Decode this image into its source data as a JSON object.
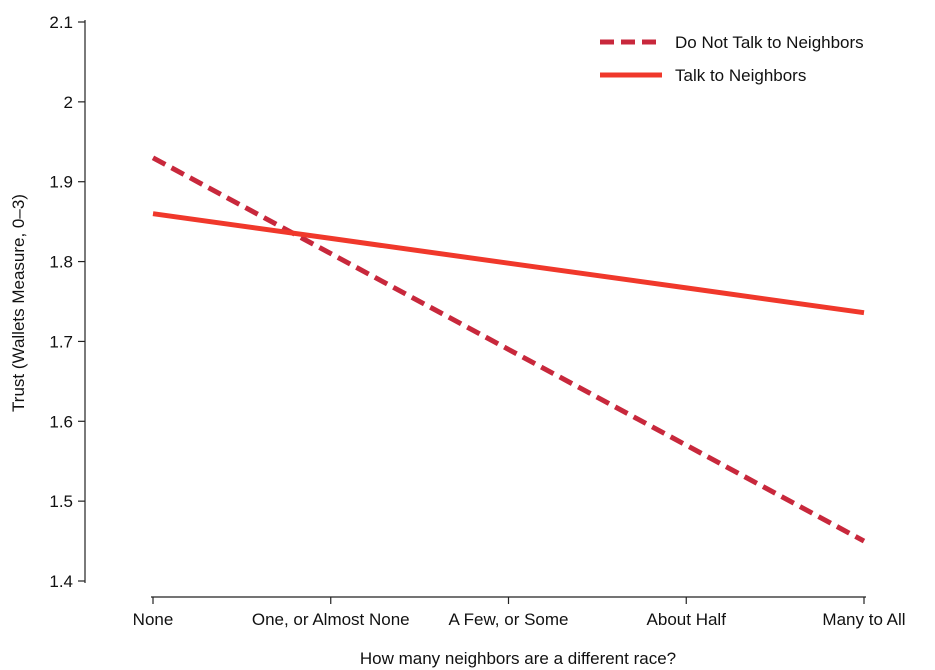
{
  "chart_data": {
    "type": "line",
    "title": "",
    "xlabel": "How many neighbors are a different race?",
    "ylabel": "Trust (Wallets Measure, 0–3)",
    "categories": [
      "None",
      "One, or Almost None",
      "A Few, or Some",
      "About Half",
      "Many to All"
    ],
    "x": [
      0,
      1,
      2,
      3,
      4
    ],
    "ylim": [
      1.4,
      2.1
    ],
    "yticks": [
      1.4,
      1.5,
      1.6,
      1.7,
      1.8,
      1.9,
      2,
      2.1
    ],
    "ytick_labels": [
      "1.4",
      "1.5",
      "1.6",
      "1.7",
      "1.8",
      "1.9",
      "2",
      "2.1"
    ],
    "grid": false,
    "legend_position": "top-right",
    "series": [
      {
        "name": "Do Not Talk to Neighbors",
        "style": "dashed",
        "color": "#c8283c",
        "values": [
          1.93,
          1.81,
          1.69,
          1.57,
          1.45
        ]
      },
      {
        "name": "Talk to Neighbors",
        "style": "solid",
        "color": "#f0382b",
        "values": [
          1.86,
          1.829,
          1.798,
          1.767,
          1.736
        ]
      }
    ]
  }
}
